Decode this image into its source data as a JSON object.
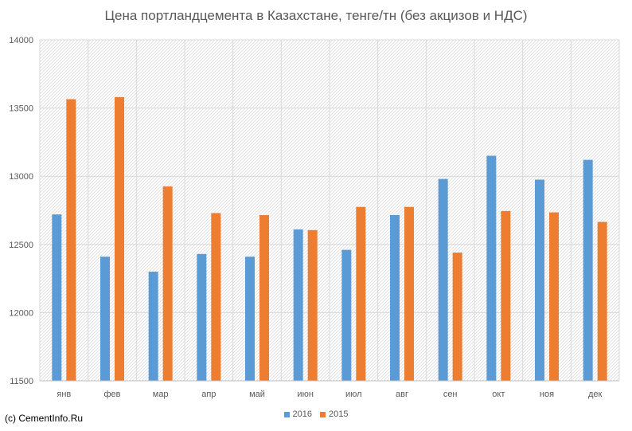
{
  "chart_data": {
    "type": "bar",
    "title": "Цена портландцемента в Казахстане, тенге/тн (без акцизов и НДС)",
    "xlabel": "",
    "ylabel": "",
    "ylim": [
      11500,
      14000
    ],
    "yticks": [
      11500,
      12000,
      12500,
      13000,
      13500,
      14000
    ],
    "categories": [
      "янв",
      "фев",
      "мар",
      "апр",
      "май",
      "июн",
      "июл",
      "авг",
      "сен",
      "окт",
      "ноя",
      "дек"
    ],
    "series": [
      {
        "name": "2016",
        "color": "#5b9bd5",
        "values": [
          12720,
          12410,
          12300,
          12430,
          12410,
          12610,
          12460,
          12715,
          12980,
          13150,
          12975,
          13120
        ]
      },
      {
        "name": "2015",
        "color": "#ed7d31",
        "values": [
          13565,
          13580,
          12925,
          12730,
          12715,
          12605,
          12775,
          12775,
          12440,
          12745,
          12735,
          12665
        ]
      }
    ],
    "grid": true,
    "legend": "bottom"
  },
  "footer": {
    "copyright": "(c) CementInfo.Ru"
  }
}
